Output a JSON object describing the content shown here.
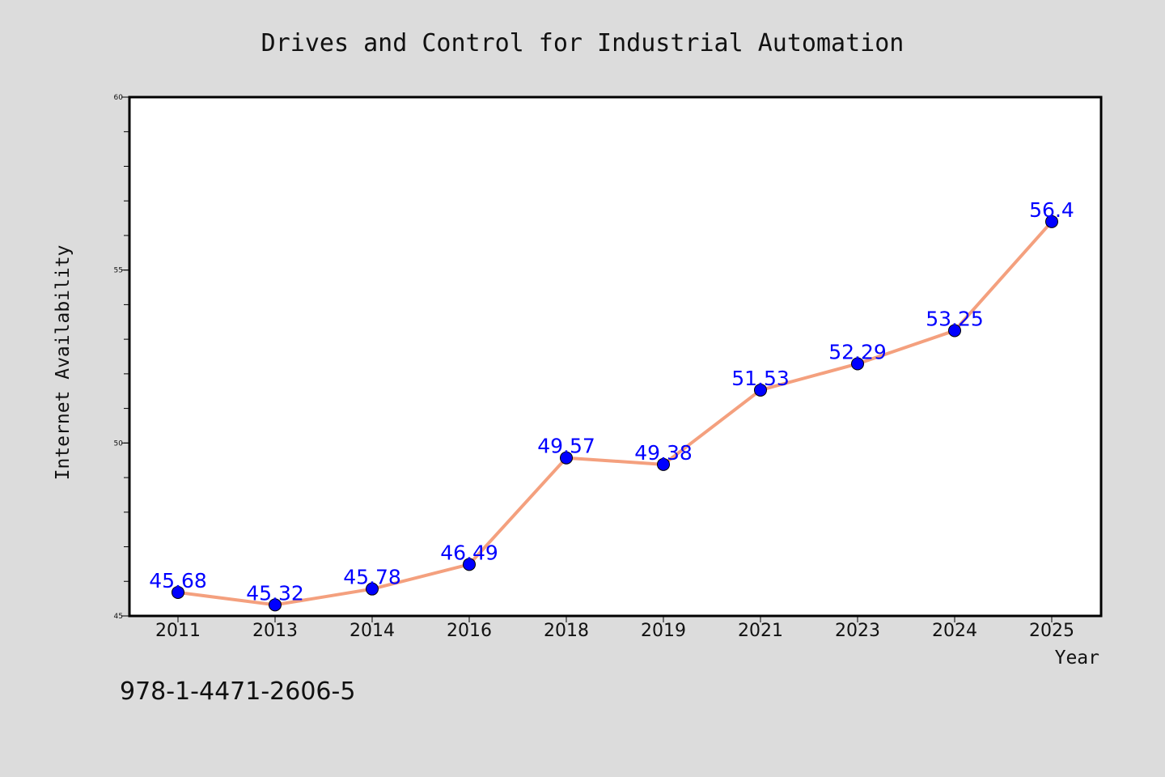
{
  "chart_data": {
    "type": "line",
    "title": "Drives and Control for Industrial Automation",
    "xlabel": "Year",
    "ylabel": "Internet Availability",
    "categories": [
      "2011",
      "2013",
      "2014",
      "2016",
      "2018",
      "2019",
      "2021",
      "2023",
      "2024",
      "2025"
    ],
    "series": [
      {
        "values": [
          45.68,
          45.32,
          45.78,
          46.49,
          49.57,
          49.38,
          51.53,
          52.29,
          53.25,
          56.4
        ],
        "labels": [
          "45.68",
          "45.32",
          "45.78",
          "46.49",
          "49.57",
          "49.38",
          "51.53",
          "52.29",
          "53.25",
          "56.4"
        ],
        "line_color": "#f4a07e",
        "marker_color": "#0000ff"
      }
    ],
    "ylim": [
      45,
      60
    ],
    "yticks_major": [
      "45",
      "50",
      "55",
      "60"
    ],
    "grid": false,
    "legend": "none"
  },
  "footer": {
    "isbn": "978-1-4471-2606-5"
  },
  "colors": {
    "background": "#dcdcdc",
    "plot_area": "#ffffff",
    "data_label": "#0000ff"
  }
}
